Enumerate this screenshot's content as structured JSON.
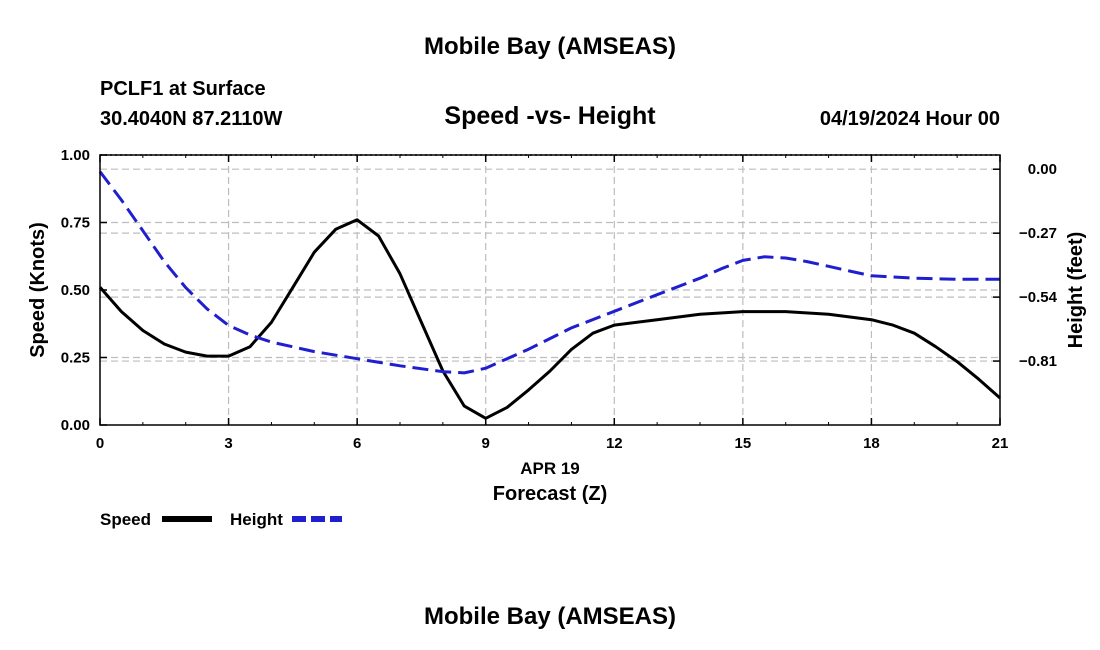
{
  "page_title": "Mobile Bay (AMSEAS)",
  "station": "PCLF1 at Surface",
  "location": "30.4040N  87.2110W",
  "chart_title": "Speed -vs- Height",
  "date_hour": "04/19/2024 Hour 00",
  "footer_title": "Mobile Bay (AMSEAS)",
  "chart_data": {
    "type": "line",
    "title": "Speed -vs- Height",
    "xlabel": "Forecast (Z)",
    "xsublabel": "APR 19",
    "ylabel": "Speed (Knots)",
    "y2label": "Height (feet)",
    "xlim": [
      0,
      21
    ],
    "ylim": [
      0,
      1
    ],
    "y2lim": [
      -1.08,
      0.06
    ],
    "xticks": [
      "0",
      "3",
      "6",
      "9",
      "12",
      "15",
      "18",
      "21"
    ],
    "yticks": [
      "0.00",
      "0.25",
      "0.50",
      "0.75",
      "1.00"
    ],
    "y2ticks": [
      "0.00",
      "−0.27",
      "−0.54",
      "−0.81"
    ],
    "grid": true,
    "legend": "bottom-left",
    "series": [
      {
        "name": "Speed",
        "axis": "left",
        "color": "#000000",
        "style": "solid",
        "x": [
          0,
          0.5,
          1,
          1.5,
          2,
          2.5,
          3,
          3.5,
          4,
          4.5,
          5,
          5.5,
          6,
          6.5,
          7,
          7.5,
          8,
          8.5,
          9,
          9.5,
          10,
          10.5,
          11,
          11.5,
          12,
          13,
          14,
          15,
          16,
          17,
          18,
          18.5,
          19,
          19.5,
          20,
          20.5,
          21
        ],
        "values": [
          0.51,
          0.42,
          0.35,
          0.3,
          0.27,
          0.255,
          0.255,
          0.29,
          0.38,
          0.51,
          0.64,
          0.725,
          0.76,
          0.7,
          0.56,
          0.38,
          0.2,
          0.07,
          0.025,
          0.065,
          0.13,
          0.2,
          0.28,
          0.34,
          0.37,
          0.39,
          0.41,
          0.42,
          0.42,
          0.41,
          0.39,
          0.37,
          0.34,
          0.29,
          0.235,
          0.17,
          0.1
        ]
      },
      {
        "name": "Height",
        "axis": "right",
        "color": "#1f1fcf",
        "style": "dashed",
        "x": [
          0,
          0.5,
          1,
          1.5,
          2,
          2.5,
          3,
          3.5,
          4,
          5,
          6,
          7,
          8,
          8.5,
          9,
          9.5,
          10,
          11,
          12,
          13,
          14,
          14.5,
          15,
          15.5,
          16,
          16.5,
          17,
          17.5,
          18,
          19,
          20,
          21
        ],
        "values": [
          -0.01,
          -0.13,
          -0.26,
          -0.39,
          -0.5,
          -0.59,
          -0.66,
          -0.7,
          -0.73,
          -0.77,
          -0.8,
          -0.83,
          -0.855,
          -0.86,
          -0.84,
          -0.8,
          -0.76,
          -0.67,
          -0.6,
          -0.53,
          -0.46,
          -0.42,
          -0.385,
          -0.37,
          -0.375,
          -0.39,
          -0.41,
          -0.43,
          -0.45,
          -0.46,
          -0.465,
          -0.465
        ]
      }
    ]
  }
}
